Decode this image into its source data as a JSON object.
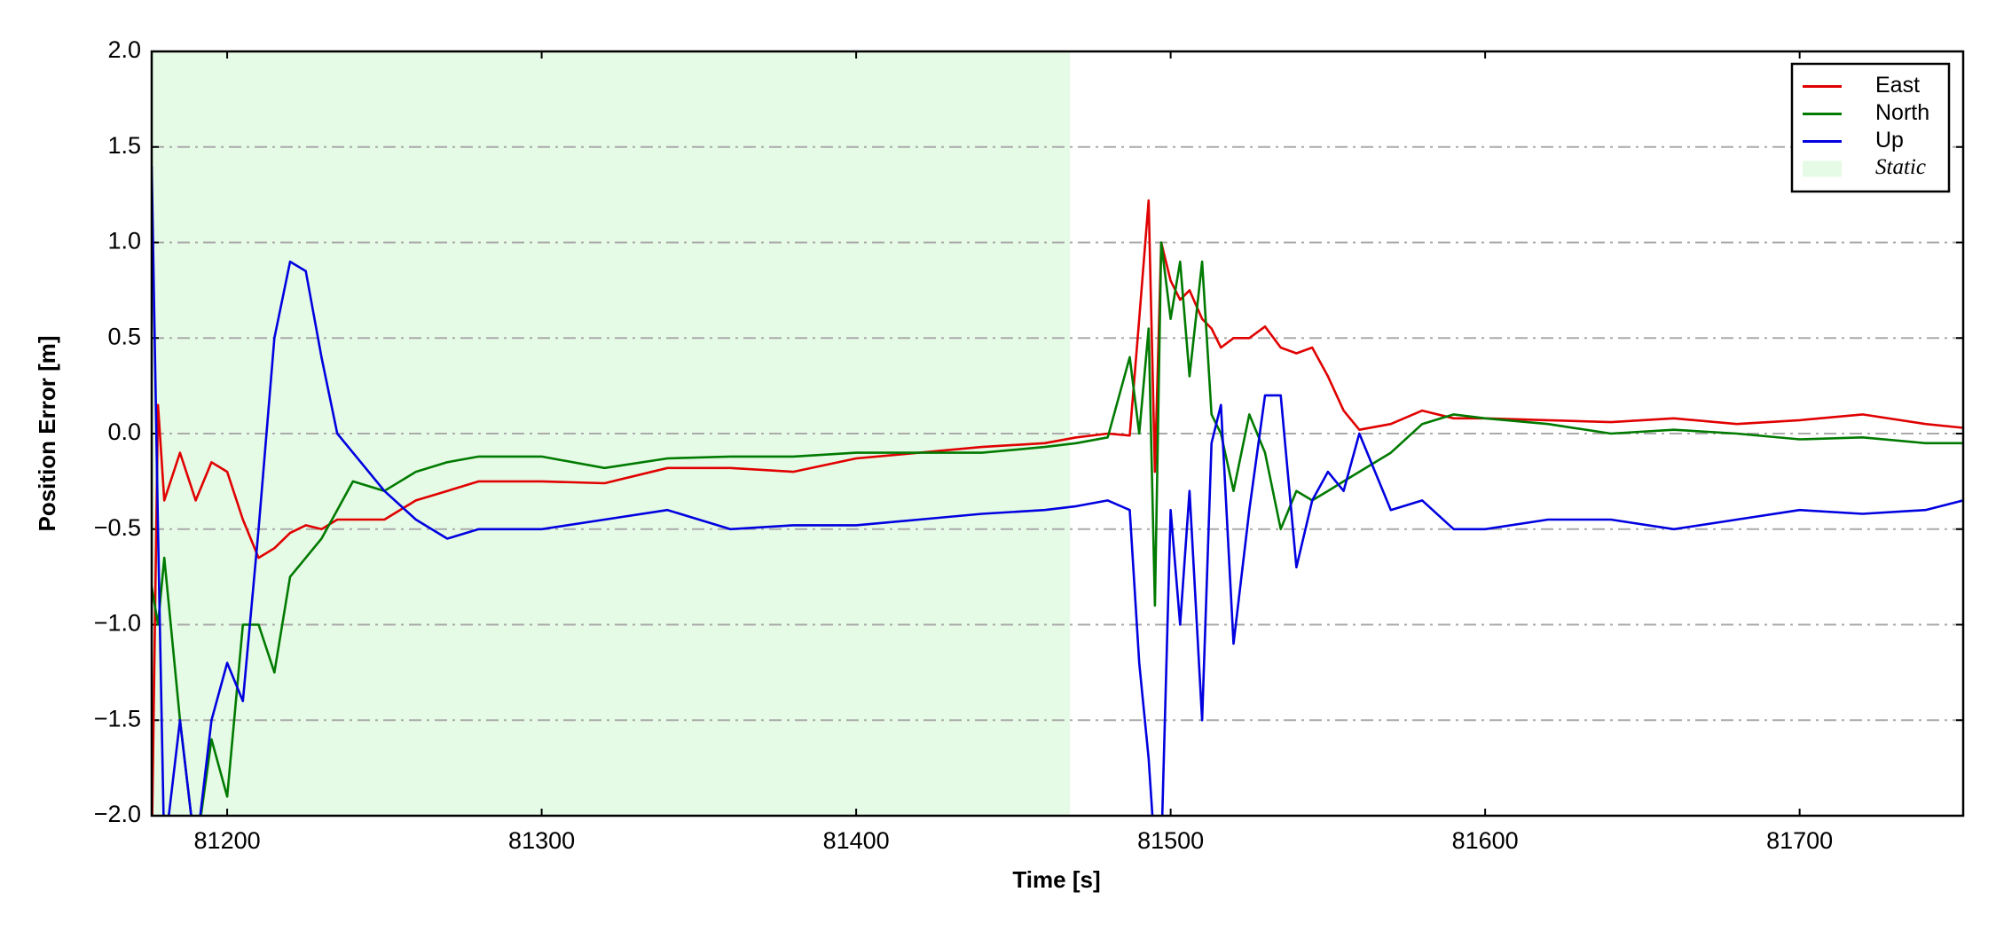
{
  "chart_data": {
    "type": "line",
    "x_label": "Time [s]",
    "y_label": "Position Error [m]",
    "x": [
      81176,
      81178,
      81180,
      81185,
      81190,
      81195,
      81200,
      81205,
      81210,
      81215,
      81220,
      81225,
      81230,
      81235,
      81240,
      81250,
      81260,
      81270,
      81280,
      81300,
      81320,
      81340,
      81360,
      81380,
      81400,
      81420,
      81440,
      81460,
      81470,
      81480,
      81487,
      81490,
      81493,
      81495,
      81497,
      81500,
      81503,
      81506,
      81510,
      81513,
      81516,
      81520,
      81525,
      81530,
      81535,
      81540,
      81545,
      81550,
      81555,
      81560,
      81570,
      81580,
      81590,
      81600,
      81620,
      81640,
      81660,
      81680,
      81700,
      81720,
      81740,
      81752
    ],
    "series": [
      {
        "name": "East",
        "color": "#e00000",
        "values": [
          -2.2,
          0.15,
          -0.35,
          -0.1,
          -0.35,
          -0.15,
          -0.2,
          -0.45,
          -0.65,
          -0.6,
          -0.52,
          -0.48,
          -0.5,
          -0.45,
          -0.45,
          -0.45,
          -0.35,
          -0.3,
          -0.25,
          -0.25,
          -0.26,
          -0.18,
          -0.18,
          -0.2,
          -0.13,
          -0.1,
          -0.07,
          -0.05,
          -0.02,
          0.0,
          -0.01,
          0.6,
          1.22,
          -0.2,
          1.0,
          0.8,
          0.7,
          0.75,
          0.6,
          0.55,
          0.45,
          0.5,
          0.5,
          0.56,
          0.45,
          0.42,
          0.45,
          0.3,
          0.12,
          0.02,
          0.05,
          0.12,
          0.08,
          0.08,
          0.07,
          0.06,
          0.08,
          0.05,
          0.07,
          0.1,
          0.05,
          0.03
        ]
      },
      {
        "name": "North",
        "color": "#007a00",
        "values": [
          -0.8,
          -1.0,
          -0.65,
          -1.5,
          -2.2,
          -1.6,
          -1.9,
          -1.0,
          -1.0,
          -1.25,
          -0.75,
          -0.65,
          -0.55,
          -0.4,
          -0.25,
          -0.3,
          -0.2,
          -0.15,
          -0.12,
          -0.12,
          -0.18,
          -0.13,
          -0.12,
          -0.12,
          -0.1,
          -0.1,
          -0.1,
          -0.07,
          -0.05,
          -0.02,
          0.4,
          0.0,
          0.55,
          -0.9,
          1.0,
          0.6,
          0.9,
          0.3,
          0.9,
          0.1,
          0.0,
          -0.3,
          0.1,
          -0.1,
          -0.5,
          -0.3,
          -0.35,
          -0.3,
          -0.25,
          -0.2,
          -0.1,
          0.05,
          0.1,
          0.08,
          0.05,
          0.0,
          0.02,
          0.0,
          -0.03,
          -0.02,
          -0.05,
          -0.05
        ]
      },
      {
        "name": "Up",
        "color": "#0000e0",
        "values": [
          1.4,
          -0.5,
          -2.2,
          -1.5,
          -2.2,
          -1.5,
          -1.2,
          -1.4,
          -0.5,
          0.5,
          0.9,
          0.85,
          0.4,
          0.0,
          -0.1,
          -0.3,
          -0.45,
          -0.55,
          -0.5,
          -0.5,
          -0.45,
          -0.4,
          -0.5,
          -0.48,
          -0.48,
          -0.45,
          -0.42,
          -0.4,
          -0.38,
          -0.35,
          -0.4,
          -1.2,
          -1.7,
          -2.2,
          -2.2,
          -0.4,
          -1.0,
          -0.3,
          -1.5,
          -0.05,
          0.15,
          -1.1,
          -0.4,
          0.2,
          0.2,
          -0.7,
          -0.35,
          -0.2,
          -0.3,
          0.0,
          -0.4,
          -0.35,
          -0.5,
          -0.5,
          -0.45,
          -0.45,
          -0.5,
          -0.45,
          -0.4,
          -0.42,
          -0.4,
          -0.35
        ]
      }
    ],
    "static_region": {
      "name": "Static",
      "color": "#e6fbe6",
      "x": [
        81176,
        81468
      ]
    },
    "xlim": [
      81176,
      81752
    ],
    "ylim": [
      -2.0,
      2.0
    ],
    "xticks": [
      81200,
      81300,
      81400,
      81500,
      81600,
      81700
    ],
    "yticks": [
      {
        "value": -2.0,
        "label": "−2.0"
      },
      {
        "value": -1.5,
        "label": "−1.5"
      },
      {
        "value": -1.0,
        "label": "−1.0"
      },
      {
        "value": -0.5,
        "label": "−0.5"
      },
      {
        "value": 0.0,
        "label": "0.0"
      },
      {
        "value": 0.5,
        "label": "0.5"
      },
      {
        "value": 1.0,
        "label": "1.0"
      },
      {
        "value": 1.5,
        "label": "1.5"
      },
      {
        "value": 2.0,
        "label": "2.0"
      }
    ],
    "grid": "y",
    "legend": "upper right"
  }
}
